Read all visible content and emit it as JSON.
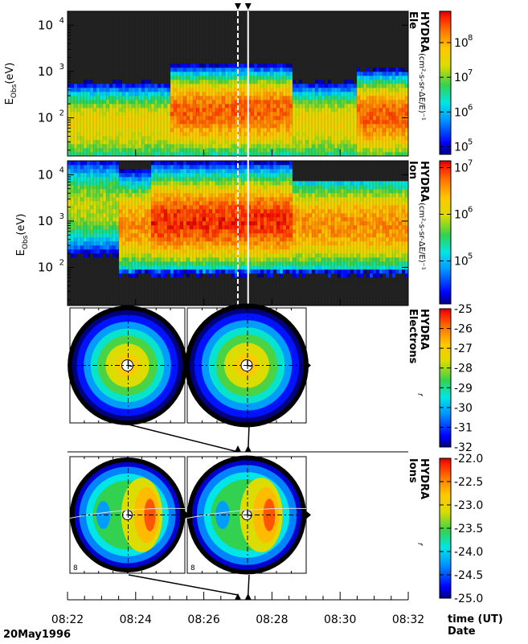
{
  "chart_data": [
    {
      "type": "heatmap",
      "instrument": "HYDRA",
      "species": "Ele",
      "ylabel": "E_Obs(eV)",
      "ylabel_main": "E",
      "ylabel_sub": "Obs",
      "ylabel_unit": "(eV)",
      "yscale": "log",
      "ylim": [
        15,
        20000
      ],
      "yticks": [
        {
          "base": "10",
          "exp": "2",
          "value": 100
        },
        {
          "base": "10",
          "exp": "3",
          "value": 1000
        },
        {
          "base": "10",
          "exp": "4",
          "value": 10000
        }
      ],
      "colorbar_title": "HYDRA",
      "colorbar_subtitle": "Ele",
      "colorbar_units": "(cm²-s-sr-ΔE/E)⁻¹",
      "colorbar_scale": "log",
      "colorbar_range": [
        60000,
        800000000
      ],
      "colorbar_ticks": [
        {
          "base": "10",
          "exp": "5",
          "value": 100000
        },
        {
          "base": "10",
          "exp": "6",
          "value": 1000000
        },
        {
          "base": "10",
          "exp": "7",
          "value": 10000000
        },
        {
          "base": "10",
          "exp": "8",
          "value": 100000000
        }
      ],
      "features": [
        {
          "time_range": [
            "08:22",
            "08:25"
          ],
          "peak_energy_eV": 80,
          "flux_level": "high (yellow)"
        },
        {
          "time_range": [
            "08:25",
            "08:28.6"
          ],
          "peak_energy_eV": 150,
          "flux_level": "very high (orange-red)"
        },
        {
          "time_range": [
            "08:28.6",
            "08:30.5"
          ],
          "peak_energy_eV": 80,
          "flux_level": "high (yellow)"
        },
        {
          "time_range": [
            "08:30.5",
            "08:32"
          ],
          "peak_energy_eV": 120,
          "flux_level": "very high (orange-red)"
        }
      ]
    },
    {
      "type": "heatmap",
      "instrument": "HYDRA",
      "species": "Ion",
      "ylabel": "E_Obs(eV)",
      "ylabel_main": "E",
      "ylabel_sub": "Obs",
      "ylabel_unit": "(eV)",
      "yscale": "log",
      "ylim": [
        15,
        20000
      ],
      "yticks": [
        {
          "base": "10",
          "exp": "2",
          "value": 100
        },
        {
          "base": "10",
          "exp": "3",
          "value": 1000
        },
        {
          "base": "10",
          "exp": "4",
          "value": 10000
        }
      ],
      "colorbar_title": "HYDRA",
      "colorbar_subtitle": "Ion",
      "colorbar_units": "(cm²-s-sr-ΔE/E)⁻¹",
      "colorbar_scale": "log",
      "colorbar_range": [
        12000,
        14000000
      ],
      "colorbar_ticks": [
        {
          "base": "10",
          "exp": "5",
          "value": 100000
        },
        {
          "base": "10",
          "exp": "6",
          "value": 1000000
        },
        {
          "base": "10",
          "exp": "7",
          "value": 10000000
        }
      ],
      "features": [
        {
          "time_range": [
            "08:22",
            "08:23.5"
          ],
          "peak_energy_eV": 2000,
          "flux_level": "moderate (green-yellow)"
        },
        {
          "time_range": [
            "08:24.5",
            "08:28.6"
          ],
          "peak_energy_eV": 1000,
          "flux_level": "very high (red)"
        },
        {
          "time_range": [
            "08:28.6",
            "08:32"
          ],
          "peak_energy_eV": 800,
          "flux_level": "high (orange)"
        }
      ]
    },
    {
      "type": "heatmap",
      "instrument": "HYDRA",
      "species": "Electrons",
      "description_kind": "velocity-space distribution slices",
      "panel_labels": [],
      "colorbar_title": "HYDRA",
      "colorbar_subtitle": "Electrons",
      "colorbar_symbol": "f",
      "colorbar_range": [
        -32,
        -25
      ],
      "colorbar_ticks": [
        -25,
        -26,
        -27,
        -28,
        -29,
        -30,
        -31,
        -32
      ]
    },
    {
      "type": "heatmap",
      "instrument": "HYDRA",
      "species": "Ions",
      "description_kind": "velocity-space distribution slices",
      "panel_labels": [
        "8",
        "8"
      ],
      "colorbar_title": "HYDRA",
      "colorbar_subtitle": "Ions",
      "colorbar_symbol": "f",
      "colorbar_range": [
        -25.0,
        -22.0
      ],
      "colorbar_ticks": [
        "-22.0",
        "-22.5",
        "-23.0",
        "-23.5",
        "-24.0",
        "-24.5",
        "-25.0"
      ]
    }
  ],
  "time_axis": {
    "ticks": [
      "08:22",
      "08:24",
      "08:26",
      "08:28",
      "08:30",
      "08:32"
    ],
    "label": "time (UT)",
    "label2": "Date",
    "date": "20May1996",
    "minor_per_major": 4
  },
  "markers": {
    "times": [
      "08:27.0",
      "08:27.3"
    ],
    "description": "dashed lines mark the sample times of the distribution slices"
  },
  "colors": {
    "frame": "#000000",
    "marker_line": "#ffffff",
    "background": "#ffffff"
  }
}
